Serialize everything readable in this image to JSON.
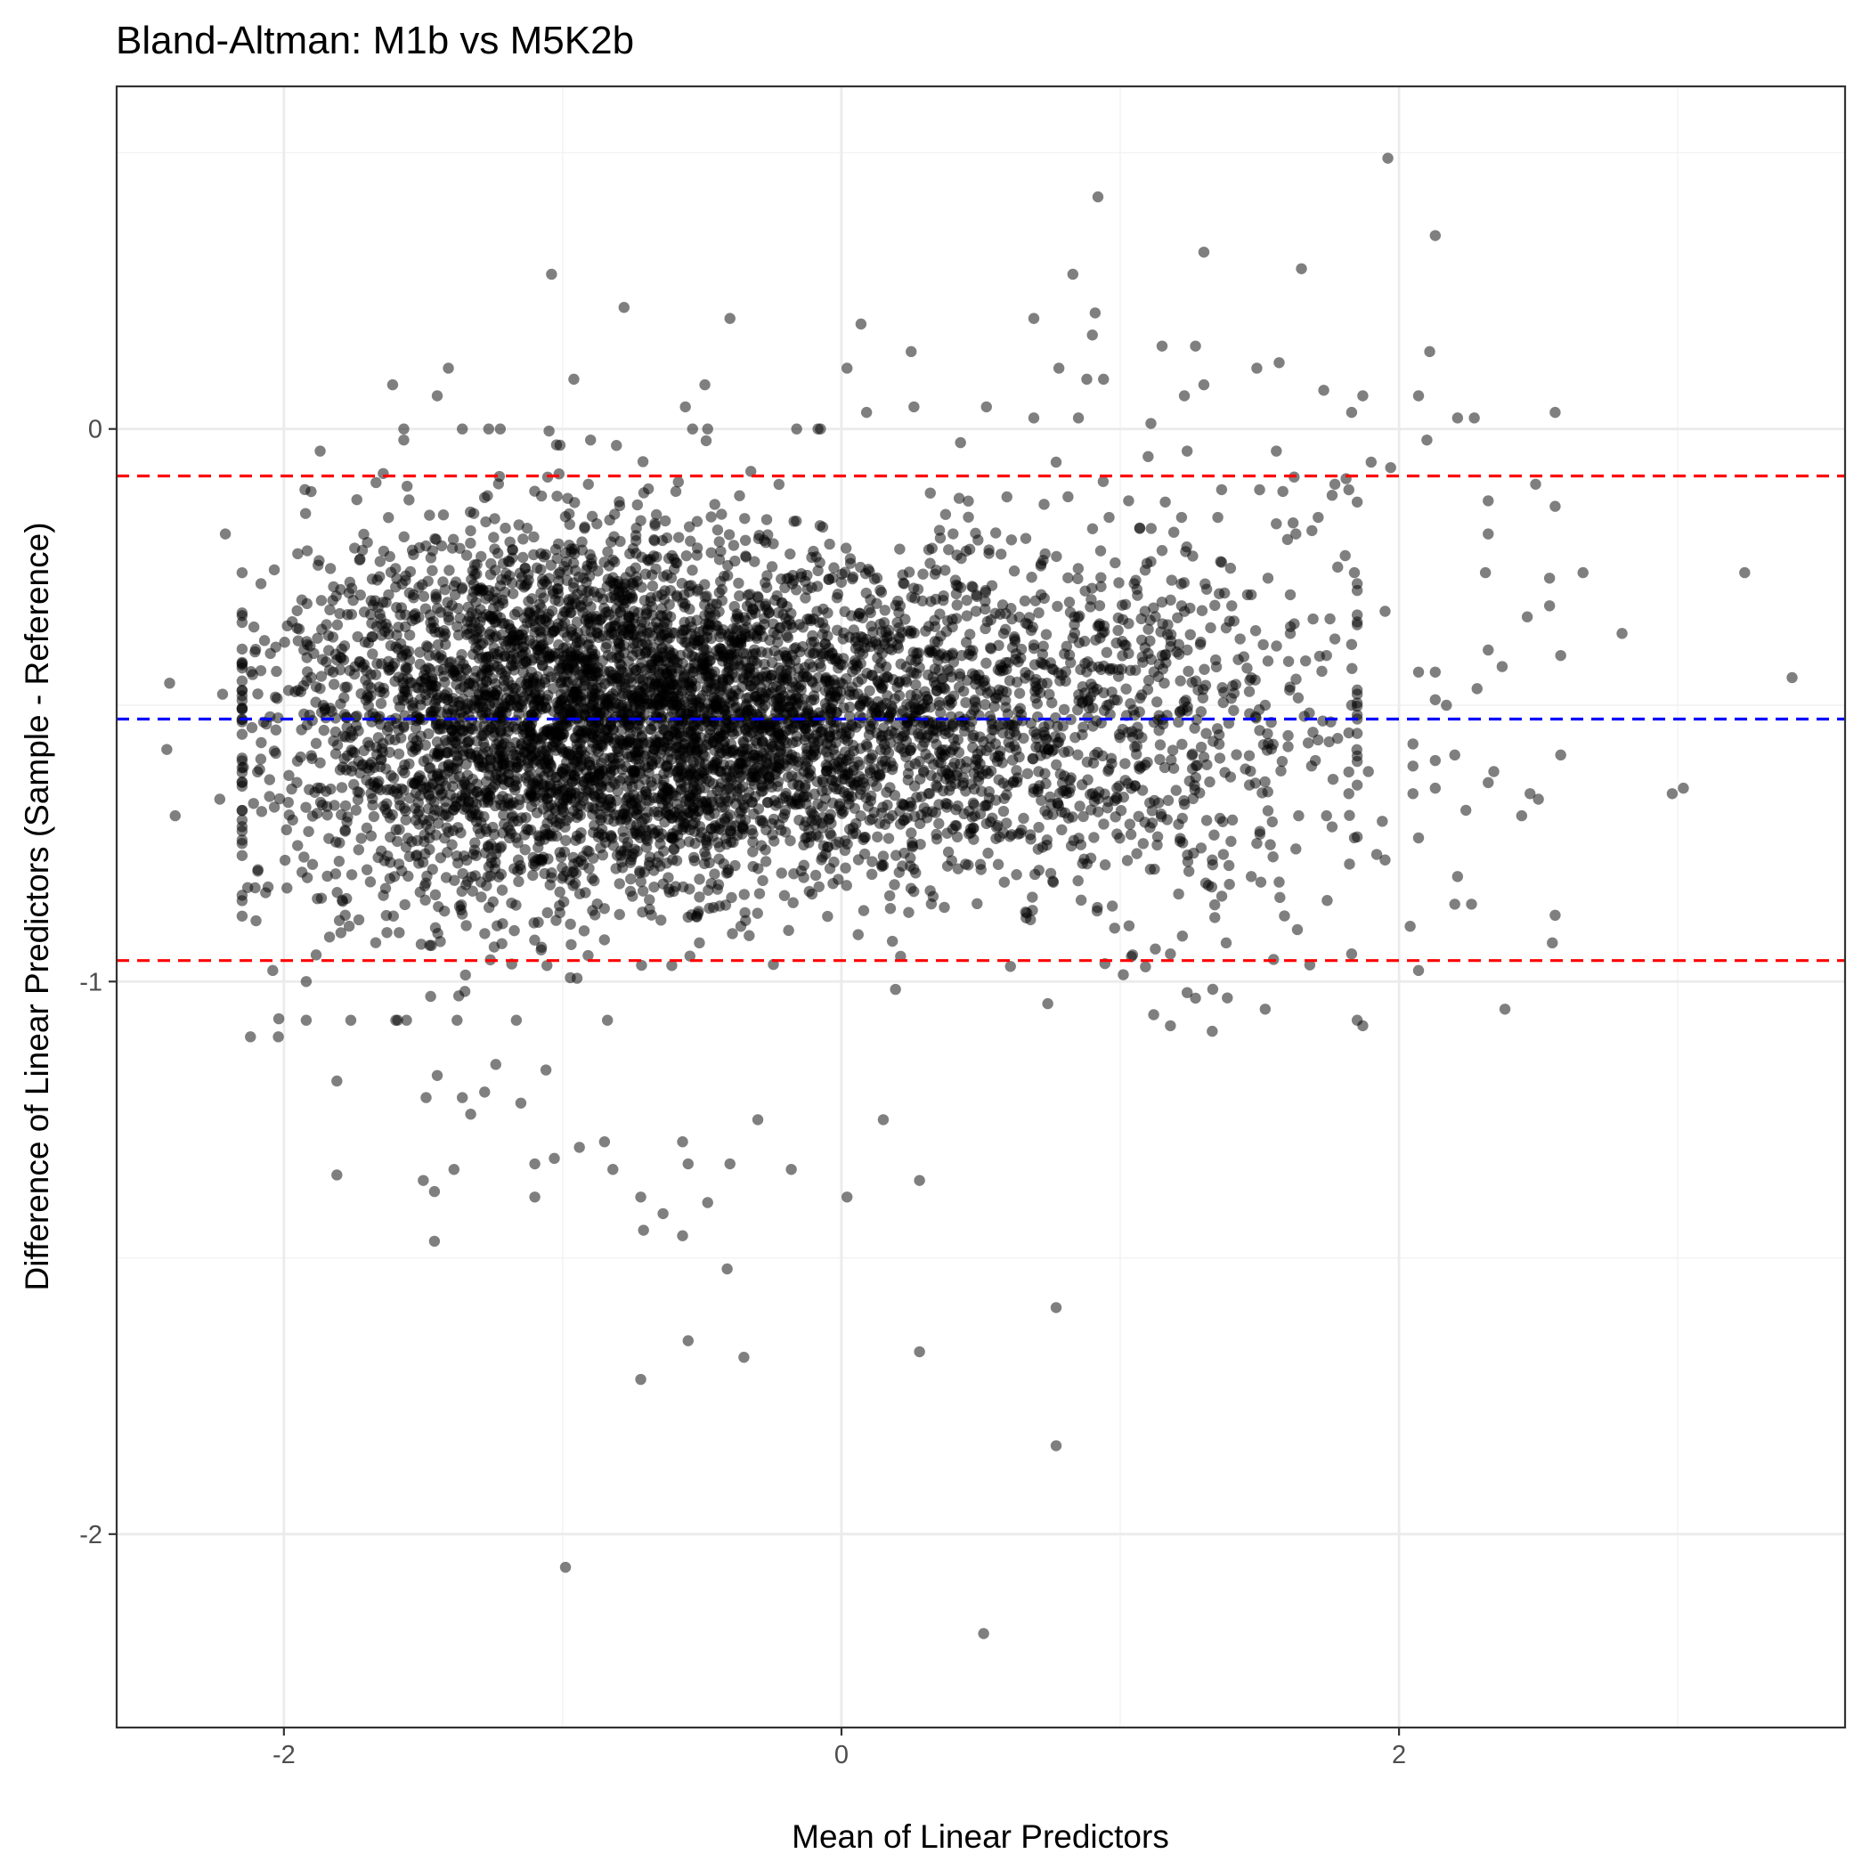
{
  "chart_data": {
    "type": "scatter",
    "title": "Bland-Altman: M1b vs M5K2b",
    "xlabel": "Mean of Linear Predictors",
    "ylabel": "Difference of Linear Predictors (Sample - Reference)",
    "xlim": [
      -2.6,
      3.6
    ],
    "ylim": [
      -2.35,
      0.62
    ],
    "x_ticks": [
      -2,
      0,
      2
    ],
    "y_ticks": [
      0,
      -1,
      -2
    ],
    "x_tick_labels": [
      "-2",
      "0",
      "2"
    ],
    "y_tick_labels": [
      "0",
      "-1",
      "-2"
    ],
    "x_minor_ticks": [
      -1,
      1,
      3
    ],
    "y_minor_ticks": [
      0.5,
      -0.5,
      -1.5
    ],
    "grid": true,
    "point_color": "#000000",
    "point_alpha": 0.5,
    "reference_lines": [
      {
        "name": "mean difference",
        "y": -0.525,
        "color": "#0000ff",
        "style": "dashed"
      },
      {
        "name": "upper limit of agreement",
        "y": -0.085,
        "color": "#ff0000",
        "style": "dashed"
      },
      {
        "name": "lower limit of agreement",
        "y": -0.962,
        "color": "#ff0000",
        "style": "dashed"
      }
    ],
    "points": [
      {
        "x": 1.96,
        "y": 0.49
      },
      {
        "x": 0.92,
        "y": 0.42
      },
      {
        "x": 2.13,
        "y": 0.35
      },
      {
        "x": 1.3,
        "y": 0.32
      },
      {
        "x": 1.65,
        "y": 0.29
      },
      {
        "x": -1.04,
        "y": 0.28
      },
      {
        "x": 0.83,
        "y": 0.28
      },
      {
        "x": -0.78,
        "y": 0.22
      },
      {
        "x": -0.4,
        "y": 0.2
      },
      {
        "x": 0.91,
        "y": 0.21
      },
      {
        "x": 0.69,
        "y": 0.2
      },
      {
        "x": 0.07,
        "y": 0.19
      },
      {
        "x": 0.9,
        "y": 0.17
      },
      {
        "x": 1.27,
        "y": 0.15
      },
      {
        "x": 1.15,
        "y": 0.15
      },
      {
        "x": 0.25,
        "y": 0.14
      },
      {
        "x": 2.11,
        "y": 0.14
      },
      {
        "x": 1.57,
        "y": 0.12
      },
      {
        "x": 0.78,
        "y": 0.11
      },
      {
        "x": 0.02,
        "y": 0.11
      },
      {
        "x": -1.41,
        "y": 0.11
      },
      {
        "x": -0.96,
        "y": 0.09
      },
      {
        "x": 1.49,
        "y": 0.11
      },
      {
        "x": 1.3,
        "y": 0.08
      },
      {
        "x": -1.61,
        "y": 0.08
      },
      {
        "x": 0.88,
        "y": 0.09
      },
      {
        "x": -0.49,
        "y": 0.08
      },
      {
        "x": 1.73,
        "y": 0.07
      },
      {
        "x": 1.87,
        "y": 0.06
      },
      {
        "x": 1.23,
        "y": 0.06
      },
      {
        "x": 2.07,
        "y": 0.06
      },
      {
        "x": -1.45,
        "y": 0.06
      },
      {
        "x": 0.94,
        "y": 0.09
      },
      {
        "x": -0.56,
        "y": 0.04
      },
      {
        "x": 0.26,
        "y": 0.04
      },
      {
        "x": 0.52,
        "y": 0.04
      },
      {
        "x": 0.09,
        "y": 0.03
      },
      {
        "x": 0.69,
        "y": 0.02
      },
      {
        "x": 2.56,
        "y": 0.03
      },
      {
        "x": 2.21,
        "y": 0.02
      },
      {
        "x": 2.27,
        "y": 0.02
      },
      {
        "x": 1.83,
        "y": 0.03
      },
      {
        "x": 0.85,
        "y": 0.02
      },
      {
        "x": 1.11,
        "y": 0.01
      },
      {
        "x": -1.36,
        "y": 0.0
      },
      {
        "x": -0.48,
        "y": 0.0
      },
      {
        "x": 2.1,
        "y": -0.02
      },
      {
        "x": -1.57,
        "y": -0.02
      },
      {
        "x": 1.56,
        "y": -0.04
      },
      {
        "x": 1.24,
        "y": -0.04
      },
      {
        "x": -0.9,
        "y": -0.02
      },
      {
        "x": 1.97,
        "y": -0.07
      },
      {
        "x": 1.1,
        "y": -0.05
      },
      {
        "x": -1.87,
        "y": -0.04
      },
      {
        "x": 1.81,
        "y": -0.09
      },
      {
        "x": 0.77,
        "y": -0.06
      },
      {
        "x": 1.9,
        "y": -0.06
      },
      {
        "x": 2.49,
        "y": -0.1
      },
      {
        "x": 1.76,
        "y": -0.12
      },
      {
        "x": 1.5,
        "y": -0.11
      },
      {
        "x": 2.56,
        "y": -0.14
      },
      {
        "x": 2.32,
        "y": -0.13
      },
      {
        "x": 1.03,
        "y": -0.13
      },
      {
        "x": 1.35,
        "y": -0.16
      },
      {
        "x": 0.96,
        "y": -0.16
      },
      {
        "x": 1.71,
        "y": -0.16
      },
      {
        "x": 1.62,
        "y": -0.17
      },
      {
        "x": 1.82,
        "y": -0.11
      },
      {
        "x": 2.32,
        "y": -0.19
      },
      {
        "x": 1.07,
        "y": -0.18
      },
      {
        "x": 1.22,
        "y": -0.16
      },
      {
        "x": 1.6,
        "y": -0.2
      },
      {
        "x": 1.77,
        "y": -0.1
      },
      {
        "x": 2.31,
        "y": -0.26
      },
      {
        "x": -2.21,
        "y": -0.19
      },
      {
        "x": 1.15,
        "y": -0.22
      },
      {
        "x": 1.36,
        "y": -0.24
      },
      {
        "x": 1.26,
        "y": -0.23
      },
      {
        "x": 1.11,
        "y": -0.24
      },
      {
        "x": 1.63,
        "y": -0.19
      },
      {
        "x": 1.85,
        "y": -0.28
      },
      {
        "x": 1.78,
        "y": -0.25
      },
      {
        "x": 1.84,
        "y": -0.26
      },
      {
        "x": 3.24,
        "y": -0.26
      },
      {
        "x": 1.53,
        "y": -0.27
      },
      {
        "x": 2.66,
        "y": -0.26
      },
      {
        "x": 2.54,
        "y": -0.27
      },
      {
        "x": 1.05,
        "y": -0.28
      },
      {
        "x": 1.31,
        "y": -0.29
      },
      {
        "x": 1.47,
        "y": -0.3
      },
      {
        "x": 1.61,
        "y": -0.3
      },
      {
        "x": 1.95,
        "y": -0.33
      },
      {
        "x": 2.54,
        "y": -0.32
      },
      {
        "x": 1.4,
        "y": -0.32
      },
      {
        "x": 1.22,
        "y": -0.32
      },
      {
        "x": 1.38,
        "y": -0.36
      },
      {
        "x": 2.46,
        "y": -0.34
      },
      {
        "x": 1.61,
        "y": -0.37
      },
      {
        "x": 2.8,
        "y": -0.37
      },
      {
        "x": 1.83,
        "y": -0.39
      },
      {
        "x": 1.43,
        "y": -0.38
      },
      {
        "x": 1.21,
        "y": -0.39
      },
      {
        "x": 1.77,
        "y": -0.38
      },
      {
        "x": 2.58,
        "y": -0.41
      },
      {
        "x": 1.74,
        "y": -0.41
      },
      {
        "x": 2.32,
        "y": -0.4
      },
      {
        "x": 1.53,
        "y": -0.42
      },
      {
        "x": 2.37,
        "y": -0.43
      },
      {
        "x": 2.07,
        "y": -0.44
      },
      {
        "x": 2.13,
        "y": -0.44
      },
      {
        "x": 3.41,
        "y": -0.45
      },
      {
        "x": 2.28,
        "y": -0.47
      },
      {
        "x": -2.41,
        "y": -0.46
      },
      {
        "x": -2.22,
        "y": -0.48
      },
      {
        "x": 1.85,
        "y": -0.48
      },
      {
        "x": 2.17,
        "y": -0.5
      },
      {
        "x": 1.83,
        "y": -0.5
      },
      {
        "x": 2.13,
        "y": -0.49
      },
      {
        "x": 1.52,
        "y": -0.5
      },
      {
        "x": 1.66,
        "y": -0.52
      },
      {
        "x": 1.82,
        "y": -0.55
      },
      {
        "x": 1.78,
        "y": -0.56
      },
      {
        "x": 2.05,
        "y": -0.57
      },
      {
        "x": 2.58,
        "y": -0.59
      },
      {
        "x": -2.42,
        "y": -0.58
      },
      {
        "x": 1.7,
        "y": -0.6
      },
      {
        "x": 2.13,
        "y": -0.6
      },
      {
        "x": 2.2,
        "y": -0.59
      },
      {
        "x": 2.34,
        "y": -0.62
      },
      {
        "x": 2.05,
        "y": -0.61
      },
      {
        "x": 1.89,
        "y": -0.62
      },
      {
        "x": 2.32,
        "y": -0.64
      },
      {
        "x": 1.82,
        "y": -0.66
      },
      {
        "x": 2.98,
        "y": -0.66
      },
      {
        "x": 3.02,
        "y": -0.65
      },
      {
        "x": 2.13,
        "y": -0.65
      },
      {
        "x": 2.5,
        "y": -0.67
      },
      {
        "x": 2.47,
        "y": -0.66
      },
      {
        "x": 2.05,
        "y": -0.66
      },
      {
        "x": 2.24,
        "y": -0.69
      },
      {
        "x": -2.23,
        "y": -0.67
      },
      {
        "x": 1.74,
        "y": -0.7
      },
      {
        "x": -2.39,
        "y": -0.7
      },
      {
        "x": 2.44,
        "y": -0.7
      },
      {
        "x": 1.64,
        "y": -0.7
      },
      {
        "x": 1.94,
        "y": -0.71
      },
      {
        "x": 1.76,
        "y": -0.72
      },
      {
        "x": 2.07,
        "y": -0.74
      },
      {
        "x": 1.84,
        "y": -0.74
      },
      {
        "x": 1.63,
        "y": -0.76
      },
      {
        "x": 1.95,
        "y": -0.78
      },
      {
        "x": 1.92,
        "y": -0.77
      },
      {
        "x": 1.49,
        "y": -0.75
      },
      {
        "x": 1.37,
        "y": -0.77
      },
      {
        "x": 2.21,
        "y": -0.81
      },
      {
        "x": 1.47,
        "y": -0.81
      },
      {
        "x": 1.57,
        "y": -0.82
      },
      {
        "x": 1.39,
        "y": -0.79
      },
      {
        "x": 1.33,
        "y": -0.78
      },
      {
        "x": -2.13,
        "y": -0.83
      },
      {
        "x": -1.88,
        "y": -0.85
      },
      {
        "x": 2.2,
        "y": -0.86
      },
      {
        "x": 2.04,
        "y": -0.9
      },
      {
        "x": 2.26,
        "y": -0.86
      },
      {
        "x": 2.56,
        "y": -0.88
      },
      {
        "x": 2.55,
        "y": -0.93
      },
      {
        "x": -1.78,
        "y": -0.88
      },
      {
        "x": -2.1,
        "y": -0.89
      },
      {
        "x": -2.04,
        "y": -0.98
      },
      {
        "x": 1.68,
        "y": -0.97
      },
      {
        "x": 2.07,
        "y": -0.98
      },
      {
        "x": -1.92,
        "y": -1.0
      },
      {
        "x": 1.83,
        "y": -0.95
      },
      {
        "x": 1.55,
        "y": -0.96
      },
      {
        "x": 1.38,
        "y": -0.93
      },
      {
        "x": 1.18,
        "y": -0.95
      },
      {
        "x": 2.38,
        "y": -1.05
      },
      {
        "x": 1.52,
        "y": -1.05
      },
      {
        "x": 1.87,
        "y": -1.08
      },
      {
        "x": 1.33,
        "y": -1.09
      },
      {
        "x": 1.18,
        "y": -1.08
      },
      {
        "x": 1.24,
        "y": -1.02
      },
      {
        "x": 1.27,
        "y": -1.03
      },
      {
        "x": 1.12,
        "y": -1.06
      },
      {
        "x": 0.74,
        "y": -1.04
      },
      {
        "x": -2.12,
        "y": -1.1
      },
      {
        "x": -2.02,
        "y": -1.1
      },
      {
        "x": -1.92,
        "y": -1.07
      },
      {
        "x": -1.76,
        "y": -1.07
      },
      {
        "x": -1.81,
        "y": -1.18
      },
      {
        "x": -1.81,
        "y": -1.35
      },
      {
        "x": -1.49,
        "y": -1.21
      },
      {
        "x": -1.36,
        "y": -1.21
      },
      {
        "x": -1.28,
        "y": -1.2
      },
      {
        "x": -1.45,
        "y": -1.17
      },
      {
        "x": -1.33,
        "y": -1.24
      },
      {
        "x": -1.24,
        "y": -1.15
      },
      {
        "x": -1.06,
        "y": -1.16
      },
      {
        "x": -1.15,
        "y": -1.22
      },
      {
        "x": -1.5,
        "y": -1.36
      },
      {
        "x": -1.46,
        "y": -1.38
      },
      {
        "x": -1.39,
        "y": -1.34
      },
      {
        "x": -1.46,
        "y": -1.47
      },
      {
        "x": -1.1,
        "y": -1.33
      },
      {
        "x": -1.03,
        "y": -1.32
      },
      {
        "x": -0.94,
        "y": -1.3
      },
      {
        "x": -0.85,
        "y": -1.29
      },
      {
        "x": -1.1,
        "y": -1.39
      },
      {
        "x": -0.82,
        "y": -1.34
      },
      {
        "x": -0.72,
        "y": -1.39
      },
      {
        "x": -0.57,
        "y": -1.29
      },
      {
        "x": -0.55,
        "y": -1.33
      },
      {
        "x": -0.4,
        "y": -1.33
      },
      {
        "x": -0.48,
        "y": -1.4
      },
      {
        "x": -0.71,
        "y": -1.45
      },
      {
        "x": -0.64,
        "y": -1.42
      },
      {
        "x": -0.57,
        "y": -1.46
      },
      {
        "x": -0.41,
        "y": -1.52
      },
      {
        "x": -0.18,
        "y": -1.34
      },
      {
        "x": 0.02,
        "y": -1.39
      },
      {
        "x": 0.28,
        "y": -1.36
      },
      {
        "x": 0.15,
        "y": -1.25
      },
      {
        "x": -0.3,
        "y": -1.25
      },
      {
        "x": -0.55,
        "y": -1.65
      },
      {
        "x": -0.35,
        "y": -1.68
      },
      {
        "x": -0.72,
        "y": -1.72
      },
      {
        "x": 0.28,
        "y": -1.67
      },
      {
        "x": 0.77,
        "y": -1.59
      },
      {
        "x": 0.77,
        "y": -1.84
      },
      {
        "x": -0.99,
        "y": -2.06
      },
      {
        "x": 0.51,
        "y": -2.18
      }
    ]
  }
}
